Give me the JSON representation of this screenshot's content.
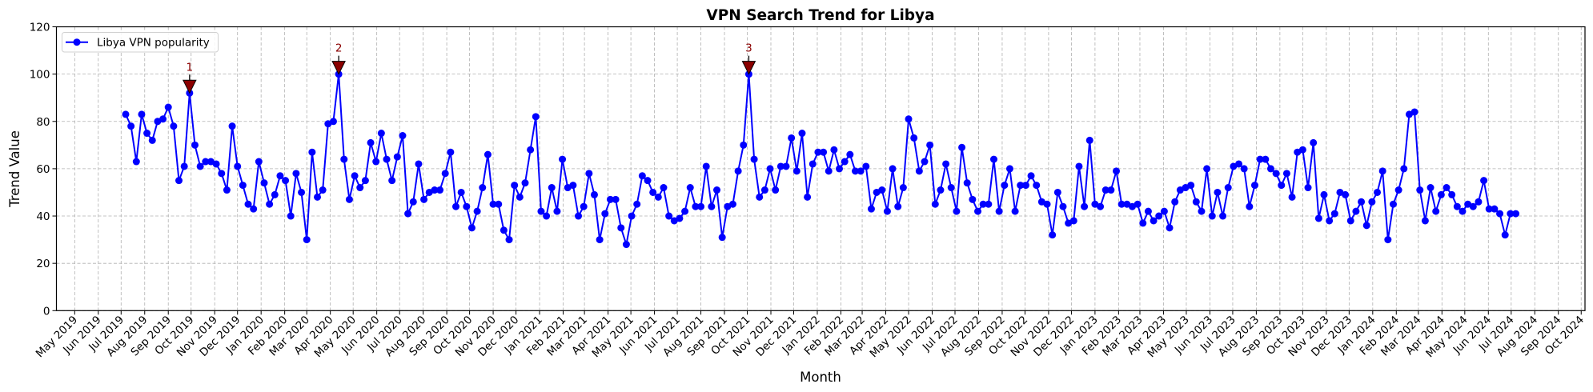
{
  "chart_data": {
    "type": "line",
    "title": "VPN Search Trend for Libya",
    "xlabel": "Month",
    "ylabel": "Trend Value",
    "ylim": [
      0,
      120
    ],
    "yticks": [
      0,
      20,
      40,
      60,
      80,
      100,
      120
    ],
    "xlim": [
      "2019-04-07",
      "2024-10-06"
    ],
    "grid": true,
    "legend_placement": "top-left",
    "xticks": [
      "2019-05-01",
      "2019-06-01",
      "2019-07-01",
      "2019-08-01",
      "2019-09-01",
      "2019-10-01",
      "2019-11-01",
      "2019-12-01",
      "2020-01-01",
      "2020-02-01",
      "2020-03-01",
      "2020-04-01",
      "2020-05-01",
      "2020-06-01",
      "2020-07-01",
      "2020-08-01",
      "2020-09-01",
      "2020-10-01",
      "2020-11-01",
      "2020-12-01",
      "2021-01-01",
      "2021-02-01",
      "2021-03-01",
      "2021-04-01",
      "2021-05-01",
      "2021-06-01",
      "2021-07-01",
      "2021-08-01",
      "2021-09-01",
      "2021-10-01",
      "2021-11-01",
      "2021-12-01",
      "2022-01-01",
      "2022-02-01",
      "2022-03-01",
      "2022-04-01",
      "2022-05-01",
      "2022-06-01",
      "2022-07-01",
      "2022-08-01",
      "2022-09-01",
      "2022-10-01",
      "2022-11-01",
      "2022-12-01",
      "2023-01-01",
      "2023-02-01",
      "2023-03-01",
      "2023-04-01",
      "2023-05-01",
      "2023-06-01",
      "2023-07-01",
      "2023-08-01",
      "2023-09-01",
      "2023-10-01",
      "2023-11-01",
      "2023-12-01",
      "2024-01-01",
      "2024-02-01",
      "2024-03-01",
      "2024-04-01",
      "2024-05-01",
      "2024-06-01",
      "2024-07-01",
      "2024-08-01",
      "2024-09-01",
      "2024-10-01"
    ],
    "xtick_labels": [
      "May 2019",
      "Jun 2019",
      "Jul 2019",
      "Aug 2019",
      "Sep 2019",
      "Oct 2019",
      "Nov 2019",
      "Dec 2019",
      "Jan 2020",
      "Feb 2020",
      "Mar 2020",
      "Apr 2020",
      "May 2020",
      "Jun 2020",
      "Jul 2020",
      "Aug 2020",
      "Sep 2020",
      "Oct 2020",
      "Nov 2020",
      "Dec 2020",
      "Jan 2021",
      "Feb 2021",
      "Mar 2021",
      "Apr 2021",
      "May 2021",
      "Jun 2021",
      "Jul 2021",
      "Aug 2021",
      "Sep 2021",
      "Oct 2021",
      "Nov 2021",
      "Dec 2021",
      "Jan 2022",
      "Feb 2022",
      "Mar 2022",
      "Apr 2022",
      "May 2022",
      "Jun 2022",
      "Jul 2022",
      "Aug 2022",
      "Sep 2022",
      "Oct 2022",
      "Nov 2022",
      "Dec 2022",
      "Jan 2023",
      "Feb 2023",
      "Mar 2023",
      "Apr 2023",
      "May 2023",
      "Jun 2023",
      "Jul 2023",
      "Aug 2023",
      "Sep 2023",
      "Oct 2023",
      "Nov 2023",
      "Dec 2023",
      "Jan 2024",
      "Feb 2024",
      "Mar 2024",
      "Apr 2024",
      "May 2024",
      "Jun 2024",
      "Jul 2024",
      "Aug 2024",
      "Sep 2024",
      "Oct 2024"
    ],
    "series": [
      {
        "name": "Libya VPN popularity",
        "color": "#0000ff",
        "marker": "circle",
        "x": [
          "2019-07-07",
          "2019-07-14",
          "2019-07-21",
          "2019-07-28",
          "2019-08-04",
          "2019-08-11",
          "2019-08-18",
          "2019-08-25",
          "2019-09-01",
          "2019-09-08",
          "2019-09-15",
          "2019-09-22",
          "2019-09-29",
          "2019-10-06",
          "2019-10-13",
          "2019-10-20",
          "2019-10-27",
          "2019-11-03",
          "2019-11-10",
          "2019-11-17",
          "2019-11-24",
          "2019-12-01",
          "2019-12-08",
          "2019-12-15",
          "2019-12-22",
          "2019-12-29",
          "2020-01-05",
          "2020-01-12",
          "2020-01-19",
          "2020-01-26",
          "2020-02-02",
          "2020-02-09",
          "2020-02-16",
          "2020-02-23",
          "2020-03-01",
          "2020-03-08",
          "2020-03-15",
          "2020-03-22",
          "2020-03-29",
          "2020-04-05",
          "2020-04-12",
          "2020-04-19",
          "2020-04-26",
          "2020-05-03",
          "2020-05-10",
          "2020-05-17",
          "2020-05-24",
          "2020-05-31",
          "2020-06-07",
          "2020-06-14",
          "2020-06-21",
          "2020-06-28",
          "2020-07-05",
          "2020-07-12",
          "2020-07-19",
          "2020-07-26",
          "2020-08-02",
          "2020-08-09",
          "2020-08-16",
          "2020-08-23",
          "2020-08-30",
          "2020-09-06",
          "2020-09-13",
          "2020-09-20",
          "2020-09-27",
          "2020-10-04",
          "2020-10-11",
          "2020-10-18",
          "2020-10-25",
          "2020-11-01",
          "2020-11-08",
          "2020-11-15",
          "2020-11-22",
          "2020-11-29",
          "2020-12-06",
          "2020-12-13",
          "2020-12-20",
          "2020-12-27",
          "2021-01-03",
          "2021-01-10",
          "2021-01-17",
          "2021-01-24",
          "2021-01-31",
          "2021-02-07",
          "2021-02-14",
          "2021-02-21",
          "2021-02-28",
          "2021-03-07",
          "2021-03-14",
          "2021-03-21",
          "2021-03-28",
          "2021-04-04",
          "2021-04-11",
          "2021-04-18",
          "2021-04-25",
          "2021-05-02",
          "2021-05-09",
          "2021-05-16",
          "2021-05-23",
          "2021-05-30",
          "2021-06-06",
          "2021-06-13",
          "2021-06-20",
          "2021-06-27",
          "2021-07-04",
          "2021-07-11",
          "2021-07-18",
          "2021-07-25",
          "2021-08-01",
          "2021-08-08",
          "2021-08-15",
          "2021-08-22",
          "2021-08-29",
          "2021-09-05",
          "2021-09-12",
          "2021-09-19",
          "2021-09-26",
          "2021-10-03",
          "2021-10-10",
          "2021-10-17",
          "2021-10-24",
          "2021-10-31",
          "2021-11-07",
          "2021-11-14",
          "2021-11-21",
          "2021-11-28",
          "2021-12-05",
          "2021-12-12",
          "2021-12-19",
          "2021-12-26",
          "2022-01-02",
          "2022-01-09",
          "2022-01-16",
          "2022-01-23",
          "2022-01-30",
          "2022-02-06",
          "2022-02-13",
          "2022-02-20",
          "2022-02-27",
          "2022-03-06",
          "2022-03-13",
          "2022-03-20",
          "2022-03-27",
          "2022-04-03",
          "2022-04-10",
          "2022-04-17",
          "2022-04-24",
          "2022-05-01",
          "2022-05-08",
          "2022-05-15",
          "2022-05-22",
          "2022-05-29",
          "2022-06-05",
          "2022-06-12",
          "2022-06-19",
          "2022-06-26",
          "2022-07-03",
          "2022-07-10",
          "2022-07-17",
          "2022-07-24",
          "2022-07-31",
          "2022-08-07",
          "2022-08-14",
          "2022-08-21",
          "2022-08-28",
          "2022-09-04",
          "2022-09-11",
          "2022-09-18",
          "2022-09-25",
          "2022-10-02",
          "2022-10-09",
          "2022-10-16",
          "2022-10-23",
          "2022-10-30",
          "2022-11-06",
          "2022-11-13",
          "2022-11-20",
          "2022-11-27",
          "2022-12-04",
          "2022-12-11",
          "2022-12-18",
          "2022-12-25",
          "2023-01-01",
          "2023-01-08",
          "2023-01-15",
          "2023-01-22",
          "2023-01-29",
          "2023-02-05",
          "2023-02-12",
          "2023-02-19",
          "2023-02-26",
          "2023-03-05",
          "2023-03-12",
          "2023-03-19",
          "2023-03-26",
          "2023-04-02",
          "2023-04-09",
          "2023-04-16",
          "2023-04-23",
          "2023-04-30",
          "2023-05-07",
          "2023-05-14",
          "2023-05-21",
          "2023-05-28",
          "2023-06-04",
          "2023-06-11",
          "2023-06-18",
          "2023-06-25",
          "2023-07-02",
          "2023-07-09",
          "2023-07-16",
          "2023-07-23",
          "2023-07-30",
          "2023-08-06",
          "2023-08-13",
          "2023-08-20",
          "2023-08-27",
          "2023-09-03",
          "2023-09-10",
          "2023-09-17",
          "2023-09-24",
          "2023-10-01",
          "2023-10-08",
          "2023-10-15",
          "2023-10-22",
          "2023-10-29",
          "2023-11-05",
          "2023-11-12",
          "2023-11-19",
          "2023-11-26",
          "2023-12-03",
          "2023-12-10",
          "2023-12-17",
          "2023-12-24",
          "2023-12-31",
          "2024-01-07",
          "2024-01-14",
          "2024-01-21",
          "2024-01-28",
          "2024-02-04",
          "2024-02-11",
          "2024-02-18",
          "2024-02-25",
          "2024-03-03",
          "2024-03-10",
          "2024-03-17",
          "2024-03-24",
          "2024-03-31",
          "2024-04-07",
          "2024-04-14",
          "2024-04-21",
          "2024-04-28",
          "2024-05-05",
          "2024-05-12",
          "2024-05-19",
          "2024-05-26",
          "2024-06-02",
          "2024-06-09",
          "2024-06-16",
          "2024-06-23",
          "2024-06-30",
          "2024-07-07"
        ],
        "y": [
          83,
          78,
          63,
          83,
          75,
          72,
          80,
          81,
          86,
          78,
          55,
          61,
          92,
          70,
          61,
          63,
          63,
          62,
          58,
          51,
          78,
          61,
          53,
          45,
          43,
          63,
          54,
          45,
          49,
          57,
          55,
          40,
          58,
          50,
          30,
          67,
          48,
          51,
          79,
          80,
          100,
          64,
          47,
          57,
          52,
          55,
          71,
          63,
          75,
          64,
          55,
          65,
          74,
          41,
          46,
          62,
          47,
          50,
          51,
          51,
          58,
          67,
          44,
          50,
          44,
          35,
          42,
          52,
          66,
          45,
          45,
          34,
          30,
          53,
          48,
          54,
          68,
          82,
          42,
          40,
          52,
          42,
          64,
          52,
          53,
          40,
          44,
          58,
          49,
          30,
          41,
          47,
          47,
          35,
          28,
          40,
          45,
          57,
          55,
          50,
          48,
          52,
          40,
          38,
          39,
          42,
          52,
          44,
          44,
          61,
          44,
          51,
          31,
          44,
          45,
          59,
          70,
          100,
          64,
          48,
          51,
          60,
          51,
          61,
          61,
          73,
          59,
          75,
          48,
          62,
          67,
          67,
          59,
          68,
          60,
          63,
          66,
          59,
          59,
          61,
          43,
          50,
          51,
          42,
          60,
          44,
          52,
          81,
          73,
          59,
          63,
          70,
          45,
          51,
          62,
          52,
          42,
          69,
          54,
          47,
          42,
          45,
          45,
          64,
          42,
          53,
          60,
          42,
          53,
          53,
          57,
          53,
          46,
          45,
          32,
          50,
          44,
          37,
          38,
          61,
          44,
          72,
          45,
          44,
          51,
          51,
          59,
          45,
          45,
          44,
          45,
          37,
          42,
          38,
          40,
          42,
          35,
          46,
          51,
          52,
          53,
          46,
          42,
          60,
          40,
          50,
          40,
          52,
          61,
          62,
          60,
          44,
          53,
          64,
          64,
          60,
          58,
          53,
          58,
          48,
          67,
          68,
          52,
          71,
          39,
          49,
          38,
          41,
          50,
          49,
          38,
          42,
          46,
          36,
          46,
          50,
          59,
          30,
          45,
          51,
          60,
          83,
          84,
          51,
          38,
          52,
          42,
          49,
          52,
          49,
          44,
          42,
          45,
          44,
          46,
          55,
          43,
          43,
          41,
          32,
          41,
          41
        ]
      }
    ],
    "annotations": [
      {
        "label": "1",
        "x": "2019-09-29",
        "y": 92,
        "color": "#8b0000",
        "marker": "triangle-down"
      },
      {
        "label": "2",
        "x": "2020-04-12",
        "y": 100,
        "color": "#8b0000",
        "marker": "triangle-down"
      },
      {
        "label": "3",
        "x": "2021-10-03",
        "y": 100,
        "color": "#8b0000",
        "marker": "triangle-down"
      }
    ]
  }
}
